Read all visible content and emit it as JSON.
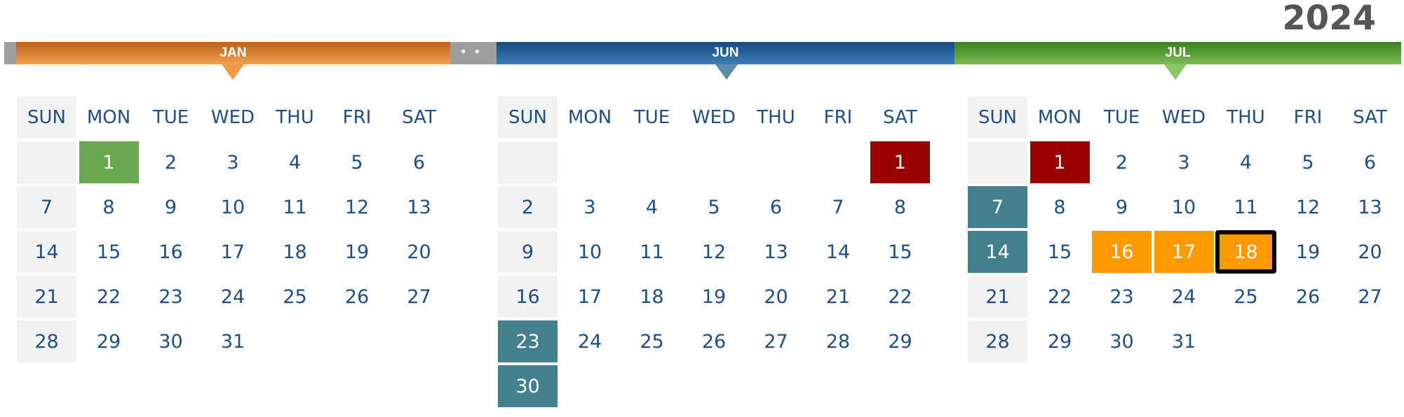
{
  "year": "2024",
  "gap_dots": "••",
  "weekday_labels": [
    "SUN",
    "MON",
    "TUE",
    "WED",
    "THU",
    "FRI",
    "SAT"
  ],
  "months": [
    {
      "key": "jan",
      "label": "JAN",
      "bar_color": "#e98a36",
      "pointer_color": "#ee9b49",
      "start_weekday": 1,
      "days_in_month": 31,
      "highlights": [
        {
          "day": 1,
          "status": "green"
        }
      ]
    },
    {
      "key": "jun",
      "label": "JUN",
      "bar_color": "#2a66a0",
      "pointer_color": "#5b8ea6",
      "start_weekday": 6,
      "days_in_month": 30,
      "highlights": [
        {
          "day": 1,
          "status": "red"
        },
        {
          "day": 23,
          "status": "teal"
        },
        {
          "day": 30,
          "status": "teal"
        }
      ]
    },
    {
      "key": "jul",
      "label": "JUL",
      "bar_color": "#5da13a",
      "pointer_color": "#8cc56a",
      "start_weekday": 1,
      "days_in_month": 31,
      "highlights": [
        {
          "day": 1,
          "status": "red"
        },
        {
          "day": 7,
          "status": "teal"
        },
        {
          "day": 14,
          "status": "teal"
        },
        {
          "day": 16,
          "status": "orange"
        },
        {
          "day": 17,
          "status": "orange"
        },
        {
          "day": 18,
          "status": "orange",
          "selected": true
        }
      ]
    }
  ],
  "status_colors": {
    "green": "#6aa84f",
    "red": "#990000",
    "teal": "#447f8e",
    "orange": "#ff9900",
    "sunday_column": "#f2f2f2",
    "day_text": "#1d4f84"
  }
}
